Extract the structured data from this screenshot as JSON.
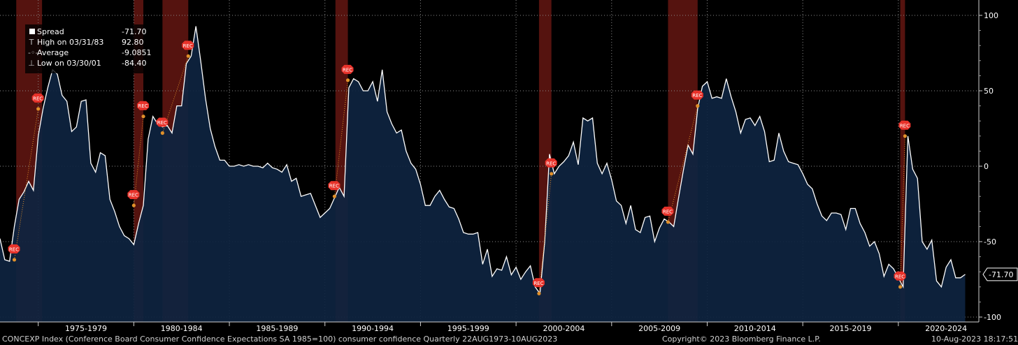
{
  "footer": {
    "left": "CONCEXP Index (Conference Board Consumer Confidence Expectations SA 1985=100) consumer confidence  Quarterly 22AUG1973-10AUG2023",
    "center": "Copyright© 2023 Bloomberg Finance L.P.",
    "right": "10-Aug-2023 18:17:51"
  },
  "legend": {
    "rows": [
      {
        "symbol": "square",
        "label": "Spread",
        "value": "-71.70"
      },
      {
        "symbol": "T",
        "label": "High on 03/31/83",
        "value": "92.80"
      },
      {
        "symbol": "-◦-",
        "label": "Average",
        "value": "-9.0851"
      },
      {
        "symbol": "⊥",
        "label": "Low on 03/30/01",
        "value": "-84.40"
      }
    ]
  },
  "last_value_label": "-71.70",
  "recession_label": "REC",
  "colors": {
    "line": "#ffffff",
    "area": "#0e2440",
    "recession": "#5a1410",
    "rec_marker": "#e8322a",
    "dot": "#e0902a",
    "axis_text": "#ffffff"
  },
  "chart_data": {
    "type": "area",
    "x_range": [
      1973.0,
      2023.7
    ],
    "ylim": [
      -100,
      105
    ],
    "y_ticks": [
      100,
      50,
      0,
      -50,
      -100
    ],
    "x_tick_labels": [
      "1975-1979",
      "1980-1984",
      "1985-1989",
      "1990-1994",
      "1995-1999",
      "2000-2004",
      "2005-2009",
      "2010-2014",
      "2015-2019",
      "2020-2024"
    ],
    "grid": true,
    "recessions": [
      [
        1973.85,
        1975.2
      ],
      [
        1980.0,
        1980.5
      ],
      [
        1981.5,
        1982.85
      ],
      [
        1990.55,
        1991.2
      ],
      [
        2001.2,
        2001.85
      ],
      [
        2007.95,
        2009.5
      ],
      [
        2020.1,
        2020.35
      ]
    ],
    "series": [
      {
        "values": [
          [
            1973.0,
            -48
          ],
          [
            1973.25,
            -62
          ],
          [
            1973.5,
            -63
          ],
          [
            1973.75,
            -40
          ],
          [
            1974.0,
            -22
          ],
          [
            1974.25,
            -17
          ],
          [
            1974.5,
            -10
          ],
          [
            1974.75,
            -16
          ],
          [
            1975.0,
            20
          ],
          [
            1975.25,
            38
          ],
          [
            1975.5,
            52
          ],
          [
            1975.75,
            64
          ],
          [
            1976.0,
            61
          ],
          [
            1976.25,
            47
          ],
          [
            1976.5,
            43
          ],
          [
            1976.75,
            23
          ],
          [
            1977.0,
            26
          ],
          [
            1977.25,
            43
          ],
          [
            1977.5,
            44
          ],
          [
            1977.75,
            2
          ],
          [
            1978.0,
            -4
          ],
          [
            1978.25,
            9
          ],
          [
            1978.5,
            7
          ],
          [
            1978.75,
            -22
          ],
          [
            1979.0,
            -30
          ],
          [
            1979.25,
            -40
          ],
          [
            1979.5,
            -46
          ],
          [
            1979.75,
            -48
          ],
          [
            1980.0,
            -52
          ],
          [
            1980.25,
            -38
          ],
          [
            1980.5,
            -26
          ],
          [
            1980.75,
            18
          ],
          [
            1981.0,
            33
          ],
          [
            1981.25,
            28
          ],
          [
            1981.5,
            26
          ],
          [
            1981.75,
            27
          ],
          [
            1982.0,
            22
          ],
          [
            1982.25,
            40
          ],
          [
            1982.5,
            40
          ],
          [
            1982.75,
            68
          ],
          [
            1983.0,
            73
          ],
          [
            1983.25,
            92.8
          ],
          [
            1983.5,
            70
          ],
          [
            1983.75,
            45
          ],
          [
            1984.0,
            25
          ],
          [
            1984.25,
            13
          ],
          [
            1984.5,
            4
          ],
          [
            1984.75,
            4
          ],
          [
            1985.0,
            0
          ],
          [
            1985.25,
            0
          ],
          [
            1985.5,
            1
          ],
          [
            1985.75,
            0
          ],
          [
            1986.0,
            1
          ],
          [
            1986.25,
            0
          ],
          [
            1986.5,
            0
          ],
          [
            1986.75,
            -1
          ],
          [
            1987.0,
            2
          ],
          [
            1987.25,
            -1
          ],
          [
            1987.5,
            -2
          ],
          [
            1987.75,
            -4
          ],
          [
            1988.0,
            1
          ],
          [
            1988.25,
            -10
          ],
          [
            1988.5,
            -8
          ],
          [
            1988.75,
            -20
          ],
          [
            1989.0,
            -19
          ],
          [
            1989.25,
            -18
          ],
          [
            1989.5,
            -26
          ],
          [
            1989.75,
            -34
          ],
          [
            1990.0,
            -31
          ],
          [
            1990.25,
            -28
          ],
          [
            1990.5,
            -21
          ],
          [
            1990.75,
            -14
          ],
          [
            1991.0,
            -20
          ],
          [
            1991.25,
            52
          ],
          [
            1991.5,
            58
          ],
          [
            1991.75,
            56
          ],
          [
            1992.0,
            50
          ],
          [
            1992.25,
            50
          ],
          [
            1992.5,
            56
          ],
          [
            1992.75,
            43
          ],
          [
            1993.0,
            64
          ],
          [
            1993.25,
            36
          ],
          [
            1993.5,
            28
          ],
          [
            1993.75,
            22
          ],
          [
            1994.0,
            24
          ],
          [
            1994.25,
            10
          ],
          [
            1994.5,
            2
          ],
          [
            1994.75,
            -2
          ],
          [
            1995.0,
            -12
          ],
          [
            1995.25,
            -26
          ],
          [
            1995.5,
            -26
          ],
          [
            1995.75,
            -20
          ],
          [
            1996.0,
            -16
          ],
          [
            1996.25,
            -22
          ],
          [
            1996.5,
            -27
          ],
          [
            1996.75,
            -28
          ],
          [
            1997.0,
            -35
          ],
          [
            1997.25,
            -44
          ],
          [
            1997.5,
            -45
          ],
          [
            1997.75,
            -45
          ],
          [
            1998.0,
            -44
          ],
          [
            1998.25,
            -65
          ],
          [
            1998.5,
            -55
          ],
          [
            1998.75,
            -73
          ],
          [
            1999.0,
            -68
          ],
          [
            1999.25,
            -69
          ],
          [
            1999.5,
            -60
          ],
          [
            1999.75,
            -72
          ],
          [
            2000.0,
            -67
          ],
          [
            2000.25,
            -75
          ],
          [
            2000.5,
            -70
          ],
          [
            2000.75,
            -66
          ],
          [
            2001.0,
            -80
          ],
          [
            2001.25,
            -84.4
          ],
          [
            2001.5,
            -50
          ],
          [
            2001.75,
            8
          ],
          [
            2002.0,
            -5
          ],
          [
            2002.25,
            0
          ],
          [
            2002.5,
            3
          ],
          [
            2002.75,
            7
          ],
          [
            2003.0,
            16
          ],
          [
            2003.25,
            1
          ],
          [
            2003.5,
            32
          ],
          [
            2003.75,
            30
          ],
          [
            2004.0,
            32
          ],
          [
            2004.25,
            2
          ],
          [
            2004.5,
            -5
          ],
          [
            2004.75,
            2
          ],
          [
            2005.0,
            -9
          ],
          [
            2005.25,
            -23
          ],
          [
            2005.5,
            -26
          ],
          [
            2005.75,
            -38
          ],
          [
            2006.0,
            -26
          ],
          [
            2006.25,
            -42
          ],
          [
            2006.5,
            -44
          ],
          [
            2006.75,
            -34
          ],
          [
            2007.0,
            -33
          ],
          [
            2007.25,
            -50
          ],
          [
            2007.5,
            -41
          ],
          [
            2007.75,
            -35
          ],
          [
            2008.0,
            -37
          ],
          [
            2008.25,
            -40
          ],
          [
            2008.5,
            -21
          ],
          [
            2008.75,
            -3
          ],
          [
            2009.0,
            14
          ],
          [
            2009.25,
            8
          ],
          [
            2009.5,
            38
          ],
          [
            2009.75,
            53
          ],
          [
            2010.0,
            56
          ],
          [
            2010.25,
            45
          ],
          [
            2010.5,
            46
          ],
          [
            2010.75,
            45
          ],
          [
            2011.0,
            58
          ],
          [
            2011.25,
            46
          ],
          [
            2011.5,
            36
          ],
          [
            2011.75,
            22
          ],
          [
            2012.0,
            31
          ],
          [
            2012.25,
            32
          ],
          [
            2012.5,
            27
          ],
          [
            2012.75,
            33
          ],
          [
            2013.0,
            23
          ],
          [
            2013.25,
            3
          ],
          [
            2013.5,
            4
          ],
          [
            2013.75,
            22
          ],
          [
            2014.0,
            10
          ],
          [
            2014.25,
            3
          ],
          [
            2014.5,
            2
          ],
          [
            2014.75,
            1
          ],
          [
            2015.0,
            -5
          ],
          [
            2015.25,
            -12
          ],
          [
            2015.5,
            -15
          ],
          [
            2015.75,
            -25
          ],
          [
            2016.0,
            -33
          ],
          [
            2016.25,
            -36
          ],
          [
            2016.5,
            -31
          ],
          [
            2016.75,
            -31
          ],
          [
            2017.0,
            -32
          ],
          [
            2017.25,
            -42
          ],
          [
            2017.5,
            -28
          ],
          [
            2017.75,
            -28
          ],
          [
            2018.0,
            -38
          ],
          [
            2018.25,
            -44
          ],
          [
            2018.5,
            -53
          ],
          [
            2018.75,
            -50
          ],
          [
            2019.0,
            -58
          ],
          [
            2019.25,
            -73
          ],
          [
            2019.5,
            -65
          ],
          [
            2019.75,
            -68
          ],
          [
            2020.0,
            -74
          ],
          [
            2020.25,
            -80
          ],
          [
            2020.5,
            20
          ],
          [
            2020.75,
            -2
          ],
          [
            2021.0,
            -8
          ],
          [
            2021.25,
            -50
          ],
          [
            2021.5,
            -55
          ],
          [
            2021.75,
            -49
          ],
          [
            2022.0,
            -76
          ],
          [
            2022.25,
            -80
          ],
          [
            2022.5,
            -67
          ],
          [
            2022.75,
            -62
          ],
          [
            2023.0,
            -74
          ],
          [
            2023.25,
            -74
          ],
          [
            2023.5,
            -71.7
          ]
        ]
      }
    ],
    "annotations": [
      {
        "text": "REC",
        "x": 1973.75,
        "y": -62
      },
      {
        "text": "REC",
        "x": 1975.0,
        "y": 38
      },
      {
        "text": "REC",
        "x": 1980.0,
        "y": -26
      },
      {
        "text": "REC",
        "x": 1980.5,
        "y": 33
      },
      {
        "text": "REC",
        "x": 1981.5,
        "y": 22
      },
      {
        "text": "REC",
        "x": 1982.85,
        "y": 73
      },
      {
        "text": "REC",
        "x": 1990.5,
        "y": -20
      },
      {
        "text": "REC",
        "x": 1991.2,
        "y": 57
      },
      {
        "text": "REC",
        "x": 2001.2,
        "y": -84.4
      },
      {
        "text": "REC",
        "x": 2001.85,
        "y": -5
      },
      {
        "text": "REC",
        "x": 2007.95,
        "y": -37
      },
      {
        "text": "REC",
        "x": 2009.5,
        "y": 40
      },
      {
        "text": "REC",
        "x": 2020.1,
        "y": -80
      },
      {
        "text": "REC",
        "x": 2020.35,
        "y": 20
      }
    ]
  }
}
